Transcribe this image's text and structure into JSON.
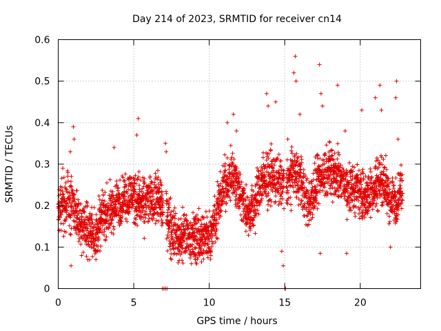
{
  "chart_data": {
    "type": "scatter",
    "title": "Day 214 of 2023, SRMTID for receiver cn14",
    "xlabel": "GPS time / hours",
    "ylabel": "SRMTID / TECUs",
    "xlim": [
      0,
      24
    ],
    "ylim": [
      0,
      0.6
    ],
    "x_ticks": [
      0,
      5,
      10,
      15,
      20
    ],
    "x_tick_labels": [
      "0",
      "5",
      "10",
      "15",
      "20"
    ],
    "y_ticks": [
      0,
      0.1,
      0.2,
      0.3,
      0.4,
      0.5,
      0.6
    ],
    "y_tick_labels": [
      "0",
      "0.1",
      "0.2",
      "0.3",
      "0.4",
      "0.5",
      "0.6"
    ],
    "grid": true,
    "marker": "plus",
    "color": "#e00000",
    "series": [
      {
        "name": "SRMTID",
        "approx_trend": [
          {
            "x": 0.0,
            "y": 0.19
          },
          {
            "x": 0.5,
            "y": 0.21
          },
          {
            "x": 1.0,
            "y": 0.2
          },
          {
            "x": 1.5,
            "y": 0.15
          },
          {
            "x": 2.0,
            "y": 0.15
          },
          {
            "x": 2.5,
            "y": 0.13
          },
          {
            "x": 3.0,
            "y": 0.18
          },
          {
            "x": 3.5,
            "y": 0.19
          },
          {
            "x": 4.0,
            "y": 0.21
          },
          {
            "x": 4.5,
            "y": 0.22
          },
          {
            "x": 5.0,
            "y": 0.23
          },
          {
            "x": 5.5,
            "y": 0.2
          },
          {
            "x": 6.0,
            "y": 0.21
          },
          {
            "x": 6.5,
            "y": 0.22
          },
          {
            "x": 7.0,
            "y": 0.2
          },
          {
            "x": 7.5,
            "y": 0.14
          },
          {
            "x": 8.0,
            "y": 0.12
          },
          {
            "x": 8.5,
            "y": 0.13
          },
          {
            "x": 9.0,
            "y": 0.12
          },
          {
            "x": 9.5,
            "y": 0.12
          },
          {
            "x": 10.0,
            "y": 0.13
          },
          {
            "x": 10.5,
            "y": 0.18
          },
          {
            "x": 11.0,
            "y": 0.25
          },
          {
            "x": 11.5,
            "y": 0.27
          },
          {
            "x": 12.0,
            "y": 0.24
          },
          {
            "x": 12.5,
            "y": 0.18
          },
          {
            "x": 13.0,
            "y": 0.2
          },
          {
            "x": 13.5,
            "y": 0.26
          },
          {
            "x": 14.0,
            "y": 0.27
          },
          {
            "x": 14.5,
            "y": 0.26
          },
          {
            "x": 15.0,
            "y": 0.24
          },
          {
            "x": 15.5,
            "y": 0.28
          },
          {
            "x": 16.0,
            "y": 0.27
          },
          {
            "x": 16.5,
            "y": 0.2
          },
          {
            "x": 17.0,
            "y": 0.24
          },
          {
            "x": 17.5,
            "y": 0.28
          },
          {
            "x": 18.0,
            "y": 0.29
          },
          {
            "x": 18.5,
            "y": 0.27
          },
          {
            "x": 19.0,
            "y": 0.25
          },
          {
            "x": 19.5,
            "y": 0.24
          },
          {
            "x": 20.0,
            "y": 0.23
          },
          {
            "x": 20.5,
            "y": 0.22
          },
          {
            "x": 21.0,
            "y": 0.25
          },
          {
            "x": 21.5,
            "y": 0.27
          },
          {
            "x": 22.0,
            "y": 0.21
          },
          {
            "x": 22.5,
            "y": 0.22
          },
          {
            "x": 22.8,
            "y": 0.25
          }
        ],
        "spread": 0.05,
        "sample_step_hours": 0.022,
        "time_range": [
          0,
          22.8
        ],
        "gaps": [
          [
            6.95,
            7.15
          ],
          [
            14.95,
            15.1
          ]
        ],
        "outliers": [
          {
            "x": 0.3,
            "y": 0.29
          },
          {
            "x": 0.8,
            "y": 0.33
          },
          {
            "x": 1.0,
            "y": 0.39
          },
          {
            "x": 1.05,
            "y": 0.36
          },
          {
            "x": 0.85,
            "y": 0.055
          },
          {
            "x": 2.5,
            "y": 0.07
          },
          {
            "x": 3.7,
            "y": 0.34
          },
          {
            "x": 5.3,
            "y": 0.41
          },
          {
            "x": 5.2,
            "y": 0.37
          },
          {
            "x": 7.1,
            "y": 0.35
          },
          {
            "x": 7.15,
            "y": 0.33
          },
          {
            "x": 7.5,
            "y": 0.07
          },
          {
            "x": 9.1,
            "y": 0.07
          },
          {
            "x": 11.2,
            "y": 0.4
          },
          {
            "x": 11.6,
            "y": 0.42
          },
          {
            "x": 11.8,
            "y": 0.38
          },
          {
            "x": 13.8,
            "y": 0.47
          },
          {
            "x": 13.9,
            "y": 0.44
          },
          {
            "x": 14.4,
            "y": 0.45
          },
          {
            "x": 14.8,
            "y": 0.09
          },
          {
            "x": 14.9,
            "y": 0.055
          },
          {
            "x": 15.2,
            "y": 0.36
          },
          {
            "x": 15.6,
            "y": 0.52
          },
          {
            "x": 15.7,
            "y": 0.56
          },
          {
            "x": 15.75,
            "y": 0.5
          },
          {
            "x": 16.0,
            "y": 0.42
          },
          {
            "x": 17.3,
            "y": 0.54
          },
          {
            "x": 17.4,
            "y": 0.47
          },
          {
            "x": 17.35,
            "y": 0.085
          },
          {
            "x": 17.5,
            "y": 0.44
          },
          {
            "x": 18.5,
            "y": 0.49
          },
          {
            "x": 19.1,
            "y": 0.085
          },
          {
            "x": 19.0,
            "y": 0.38
          },
          {
            "x": 20.1,
            "y": 0.43
          },
          {
            "x": 21.0,
            "y": 0.46
          },
          {
            "x": 21.3,
            "y": 0.49
          },
          {
            "x": 21.4,
            "y": 0.43
          },
          {
            "x": 22.0,
            "y": 0.1
          },
          {
            "x": 22.4,
            "y": 0.5
          },
          {
            "x": 22.35,
            "y": 0.46
          },
          {
            "x": 22.5,
            "y": 0.36
          }
        ],
        "zero_points": [
          {
            "x": 6.9,
            "y": 0
          },
          {
            "x": 7.0,
            "y": 0
          },
          {
            "x": 7.1,
            "y": 0
          },
          {
            "x": 7.2,
            "y": 0
          },
          {
            "x": 15.0,
            "y": 0
          },
          {
            "x": 15.05,
            "y": 0
          }
        ]
      }
    ]
  }
}
